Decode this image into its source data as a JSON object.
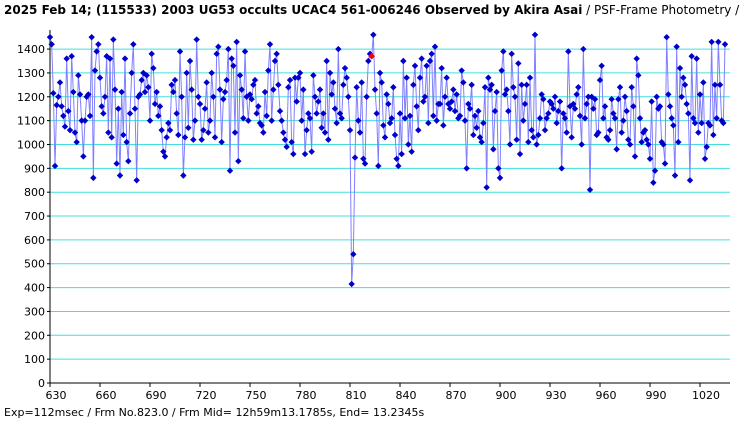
{
  "chart_data": {
    "type": "scatter",
    "title": "2025 Feb 14; (115533) 2003 UG53 occults UCAC4 561-006246 Observed by Akira Asai",
    "subtitle": " / PSF-Frame Photometry /",
    "footer": "Exp=112msec / Frm No.823.0 / Frm Mid= 12h59m13.1785s, End= 13.2345s",
    "xlim": [
      630,
      1038
    ],
    "ylim": [
      0,
      1480
    ],
    "xticks": [
      630,
      660,
      690,
      720,
      750,
      780,
      810,
      840,
      870,
      900,
      930,
      960,
      990,
      1020
    ],
    "yticks": [
      0,
      100,
      200,
      300,
      400,
      500,
      600,
      700,
      800,
      900,
      1000,
      1100,
      1200,
      1300,
      1400
    ],
    "grid": true,
    "series": [
      {
        "color": "#0000cc",
        "line_color": "#8080ff",
        "x": [
          630,
          631,
          632,
          633,
          634,
          635,
          636,
          637,
          638,
          639,
          640,
          641,
          642,
          643,
          644,
          645,
          646,
          647,
          648,
          649,
          650,
          651,
          652,
          653,
          654,
          655,
          656,
          657,
          658,
          659,
          660,
          661,
          662,
          663,
          664,
          665,
          666,
          667,
          668,
          669,
          670,
          671,
          672,
          673,
          674,
          675,
          676,
          677,
          678,
          679,
          680,
          681,
          682,
          683,
          684,
          685,
          686,
          687,
          688,
          689,
          690,
          691,
          692,
          693,
          694,
          695,
          696,
          697,
          698,
          699,
          700,
          701,
          702,
          703,
          704,
          705,
          706,
          707,
          708,
          709,
          710,
          711,
          712,
          713,
          714,
          715,
          716,
          717,
          718,
          719,
          720,
          721,
          722,
          723,
          724,
          725,
          726,
          727,
          728,
          729,
          730,
          731,
          732,
          733,
          734,
          735,
          736,
          737,
          738,
          739,
          740,
          741,
          742,
          743,
          744,
          745,
          746,
          747,
          748,
          749,
          750,
          751,
          752,
          753,
          754,
          755,
          756,
          757,
          758,
          759,
          760,
          761,
          762,
          763,
          764,
          765,
          766,
          767,
          768,
          769,
          770,
          771,
          772,
          773,
          774,
          775,
          776,
          777,
          778,
          779,
          780,
          781,
          782,
          783,
          784,
          785,
          786,
          787,
          788,
          789,
          790,
          791,
          792,
          793,
          794,
          795,
          796,
          797,
          798,
          799,
          800,
          801,
          802,
          803,
          804,
          805,
          806,
          807,
          808,
          809,
          810,
          811,
          812,
          813,
          814,
          815,
          816,
          817,
          818,
          819,
          820,
          821,
          822,
          823,
          824,
          825,
          826,
          827,
          828,
          829,
          830,
          831,
          832,
          833,
          834,
          835,
          836,
          837,
          838,
          839,
          840,
          841,
          842,
          843,
          844,
          845,
          846,
          847,
          848,
          849,
          850,
          851,
          852,
          853,
          854,
          855,
          856,
          857,
          858,
          859,
          860,
          861,
          862,
          863,
          864,
          865,
          866,
          867,
          868,
          869,
          870,
          871,
          872,
          873,
          874,
          875,
          876,
          877,
          878,
          879,
          880,
          881,
          882,
          883,
          884,
          885,
          886,
          887,
          888,
          889,
          890,
          891,
          892,
          893,
          894,
          895,
          896,
          897,
          898,
          899,
          900,
          901,
          902,
          903,
          904,
          905,
          906,
          907,
          908,
          909,
          910,
          911,
          912,
          913,
          914,
          915,
          916,
          917,
          918,
          919,
          920,
          921,
          922,
          923,
          924,
          925,
          926,
          927,
          928,
          929,
          930,
          931,
          932,
          933,
          934,
          935,
          936,
          937,
          938,
          939,
          940,
          941,
          942,
          943,
          944,
          945,
          946,
          947,
          948,
          949,
          950,
          951,
          952,
          953,
          954,
          955,
          956,
          957,
          958,
          959,
          960,
          961,
          962,
          963,
          964,
          965,
          966,
          967,
          968,
          969,
          970,
          971,
          972,
          973,
          974,
          975,
          976,
          977,
          978,
          979,
          980,
          981,
          982,
          983,
          984,
          985,
          986,
          987,
          988,
          989,
          990,
          991,
          992,
          993,
          994,
          995,
          996,
          997,
          998,
          999,
          1000,
          1001,
          1002,
          1003,
          1004,
          1005,
          1006,
          1007,
          1008,
          1009,
          1010,
          1011,
          1012,
          1013,
          1014,
          1015,
          1016,
          1017,
          1018,
          1019,
          1020,
          1021,
          1022,
          1023,
          1024,
          1025,
          1026,
          1027,
          1028,
          1029,
          1030,
          1031,
          1032,
          1033,
          1034,
          1035
        ],
        "values": [
          1450,
          1420,
          1215,
          910,
          1165,
          1200,
          1260,
          1160,
          1120,
          1075,
          1360,
          1140,
          1060,
          1370,
          1220,
          1050,
          1010,
          1290,
          1210,
          1100,
          950,
          1100,
          1200,
          1210,
          1120,
          1450,
          860,
          1310,
          1390,
          1420,
          1280,
          1160,
          1130,
          1200,
          1370,
          1050,
          1360,
          1030,
          1440,
          1230,
          920,
          1150,
          870,
          1220,
          1040,
          1360,
          1010,
          930,
          1130,
          1300,
          1420,
          1150,
          850,
          1200,
          1210,
          1270,
          1300,
          1220,
          1290,
          1240,
          1100,
          1380,
          1320,
          1170,
          1220,
          1120,
          1160,
          1060,
          970,
          950,
          1030,
          1090,
          1060,
          1250,
          1220,
          1270,
          1130,
          1040,
          1390,
          1200,
          870,
          1030,
          1300,
          1070,
          1350,
          1230,
          1020,
          1100,
          1440,
          1200,
          1170,
          1020,
          1060,
          1150,
          1260,
          1050,
          1100,
          1300,
          1200,
          1030,
          1380,
          1410,
          1230,
          1010,
          1190,
          1220,
          1270,
          1400,
          890,
          1360,
          1330,
          1050,
          1430,
          930,
          1290,
          1230,
          1110,
          1390,
          1200,
          1100,
          1210,
          1190,
          1250,
          1270,
          1130,
          1160,
          1090,
          1080,
          1050,
          1220,
          1120,
          1310,
          1420,
          1100,
          1230,
          1350,
          1380,
          1250,
          1140,
          1100,
          1050,
          1020,
          990,
          1240,
          1270,
          1010,
          960,
          1280,
          1180,
          1280,
          1300,
          1100,
          1230,
          960,
          1060,
          1130,
          1110,
          970,
          1290,
          1200,
          1130,
          1180,
          1230,
          1070,
          1130,
          1050,
          1350,
          1020,
          1300,
          1210,
          1260,
          1150,
          1090,
          1400,
          1130,
          1110,
          1250,
          1320,
          1280,
          1200,
          1060,
          415,
          540,
          945,
          1240,
          1100,
          1050,
          1260,
          940,
          920,
          1200,
          1350,
          1380,
          1370,
          1460,
          1230,
          1130,
          910,
          1300,
          1260,
          1080,
          1030,
          1210,
          1170,
          1090,
          1110,
          1240,
          1040,
          940,
          910,
          1130,
          960,
          1350,
          1110,
          1280,
          1000,
          1120,
          970,
          1250,
          1330,
          1160,
          1060,
          1280,
          1360,
          1180,
          1200,
          1330,
          1090,
          1350,
          1380,
          1120,
          1410,
          1100,
          1170,
          1170,
          1320,
          1080,
          1200,
          1280,
          1170,
          1150,
          1180,
          1230,
          1140,
          1210,
          1110,
          1120,
          1310,
          1260,
          1100,
          900,
          1170,
          1150,
          1250,
          1040,
          1120,
          1070,
          1140,
          1030,
          1010,
          1090,
          1240,
          820,
          1280,
          1230,
          1250,
          980,
          1140,
          1220,
          900,
          860,
          1310,
          1390,
          1210,
          1230,
          1140,
          1000,
          1380,
          1240,
          1200,
          1020,
          1340,
          960,
          1250,
          1100,
          1170,
          1250,
          1010,
          1280,
          1060,
          1030,
          1460,
          1000,
          1040,
          1110,
          1210,
          1190,
          1060,
          1110,
          1130,
          1180,
          1170,
          1150,
          1200,
          1090,
          1140,
          1180,
          900,
          1130,
          1110,
          1050,
          1390,
          1160,
          1030,
          1170,
          1150,
          1210,
          1240,
          1120,
          1000,
          1400,
          1110,
          1170,
          1200,
          810,
          1200,
          1150,
          1190,
          1040,
          1050,
          1270,
          1330,
          1110,
          1160,
          1030,
          1020,
          1060,
          1190,
          1130,
          1110,
          980,
          1190,
          1240,
          1050,
          1100,
          1200,
          1140,
          1020,
          1000,
          1240,
          1160,
          950,
          1360,
          1290,
          1110,
          1010,
          1050,
          1060,
          1020,
          1000,
          940,
          1180,
          840,
          890,
          1200,
          1150,
          1160,
          1010,
          1000,
          920,
          1450,
          1210,
          1160,
          1110,
          1080,
          870,
          1410,
          1010,
          1320,
          1200,
          1280,
          1250,
          1170,
          1130,
          850,
          1370,
          1110,
          1090,
          1360,
          1050,
          1210,
          1090,
          1260,
          940,
          990,
          1090,
          1080,
          1430,
          1040,
          1250,
          1110,
          1430,
          1250,
          1100,
          1090,
          1420
        ]
      },
      {
        "color": "#ff0000",
        "x": [
          823
        ],
        "values": [
          1370
        ]
      }
    ]
  }
}
